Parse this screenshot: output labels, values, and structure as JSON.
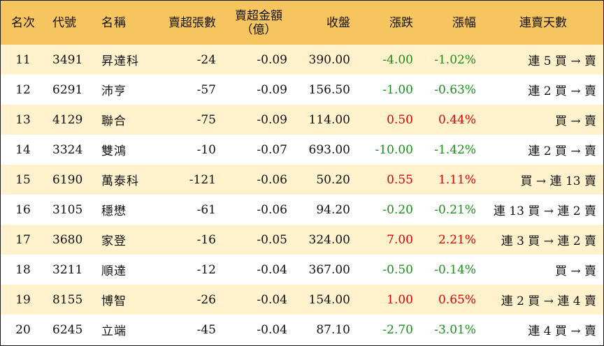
{
  "table": {
    "headers": {
      "rank": "名次",
      "code": "代號",
      "name": "名稱",
      "net_sell_lots": "賣超張數",
      "net_sell_amount_line1": "賣超金額",
      "net_sell_amount_line2": "（億）",
      "close": "收盤",
      "change": "漲跌",
      "change_pct": "漲幅",
      "streak": "連賣天數"
    },
    "colors": {
      "up": "#e10000",
      "down": "#1a8f1a",
      "header_bg": "#f7c55f",
      "stripe_bg": "#fff2cc"
    },
    "rows": [
      {
        "rank": "11",
        "code": "3491",
        "name": "昇達科",
        "lots": "-24",
        "amount": "-0.09",
        "close": "390.00",
        "change": "-4.00",
        "pct": "-1.02%",
        "dir": "down",
        "streak": "連 5 買 → 賣"
      },
      {
        "rank": "12",
        "code": "6291",
        "name": "沛亨",
        "lots": "-57",
        "amount": "-0.09",
        "close": "156.50",
        "change": "-1.00",
        "pct": "-0.63%",
        "dir": "down",
        "streak": "連 2 買 → 賣"
      },
      {
        "rank": "13",
        "code": "4129",
        "name": "聯合",
        "lots": "-75",
        "amount": "-0.09",
        "close": "114.00",
        "change": "0.50",
        "pct": "0.44%",
        "dir": "up",
        "streak": "買 → 賣"
      },
      {
        "rank": "14",
        "code": "3324",
        "name": "雙鴻",
        "lots": "-10",
        "amount": "-0.07",
        "close": "693.00",
        "change": "-10.00",
        "pct": "-1.42%",
        "dir": "down",
        "streak": "連 2 買 → 賣"
      },
      {
        "rank": "15",
        "code": "6190",
        "name": "萬泰科",
        "lots": "-121",
        "amount": "-0.06",
        "close": "50.20",
        "change": "0.55",
        "pct": "1.11%",
        "dir": "up",
        "streak": "買 → 連 13 賣"
      },
      {
        "rank": "16",
        "code": "3105",
        "name": "穩懋",
        "lots": "-61",
        "amount": "-0.06",
        "close": "94.20",
        "change": "-0.20",
        "pct": "-0.21%",
        "dir": "down",
        "streak": "連 13 買 → 連 2 賣"
      },
      {
        "rank": "17",
        "code": "3680",
        "name": "家登",
        "lots": "-16",
        "amount": "-0.05",
        "close": "324.00",
        "change": "7.00",
        "pct": "2.21%",
        "dir": "up",
        "streak": "連 3 買 → 連 2 賣"
      },
      {
        "rank": "18",
        "code": "3211",
        "name": "順達",
        "lots": "-12",
        "amount": "-0.04",
        "close": "367.00",
        "change": "-0.50",
        "pct": "-0.14%",
        "dir": "down",
        "streak": "買 → 賣"
      },
      {
        "rank": "19",
        "code": "8155",
        "name": "博智",
        "lots": "-26",
        "amount": "-0.04",
        "close": "154.00",
        "change": "1.00",
        "pct": "0.65%",
        "dir": "up",
        "streak": "連 2 買 → 連 4 賣"
      },
      {
        "rank": "20",
        "code": "6245",
        "name": "立端",
        "lots": "-45",
        "amount": "-0.04",
        "close": "87.10",
        "change": "-2.70",
        "pct": "-3.01%",
        "dir": "down",
        "streak": "連 4 買 → 賣"
      }
    ]
  }
}
